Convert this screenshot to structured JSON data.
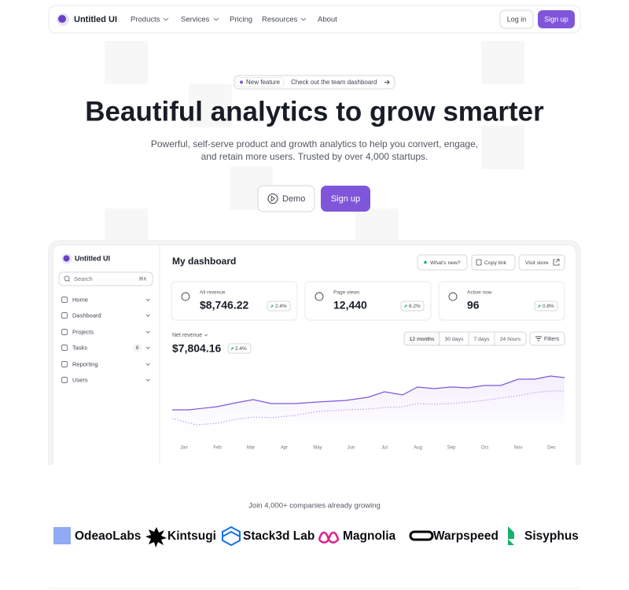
{
  "nav": {
    "brand": "Untitled UI",
    "menu": [
      "Products",
      "Services",
      "Pricing",
      "Resources",
      "About"
    ],
    "login": "Log in",
    "signup": "Sign up"
  },
  "hero": {
    "badge_tag": "New feature",
    "badge_text": "Check out the team dashboard",
    "title": "Beautiful analytics to grow smarter",
    "subtitle": [
      "Powerful, self-serve product and growth analytics to help you convert, engage,",
      "and retain more users. Trusted by over 4,000 startups."
    ],
    "demo": "Demo",
    "signup": "Sign up"
  },
  "dashboard": {
    "brand": "Untitled UI",
    "search": "Search",
    "shortcut": "⌘K",
    "nav": [
      "Home",
      "Dashboard",
      "Projects",
      "Tasks",
      "Reporting",
      "Users"
    ],
    "tasks_count": 8,
    "title": "My dashboard",
    "actions": [
      "What's new?",
      "Copy link",
      "Visit store"
    ],
    "stats": [
      {
        "label": "All revenue",
        "value": "$8,746.22",
        "change": "2.4%"
      },
      {
        "label": "Page views",
        "value": "12,440",
        "change": "6.2%"
      },
      {
        "label": "Active now",
        "value": "96",
        "change": "0.8%"
      }
    ],
    "net_revenue": {
      "label": "Net revenue",
      "value": "$7,804.16",
      "change": "2.4%"
    },
    "ranges": [
      "12 months",
      "30 days",
      "7 days",
      "24 hours"
    ],
    "filters": "Filters",
    "months": [
      "Jan",
      "Feb",
      "Mar",
      "Apr",
      "May",
      "Jun",
      "Jul",
      "Aug",
      "Sep",
      "Oct",
      "Nov",
      "Dec"
    ]
  },
  "logos": {
    "caption": "Join 4,000+ companies already growing",
    "names": [
      "OdeaoLabs",
      "Kintsugi",
      "Stack3d Lab",
      "Magnolia",
      "Warpspeed",
      "Sisyphus"
    ]
  }
}
